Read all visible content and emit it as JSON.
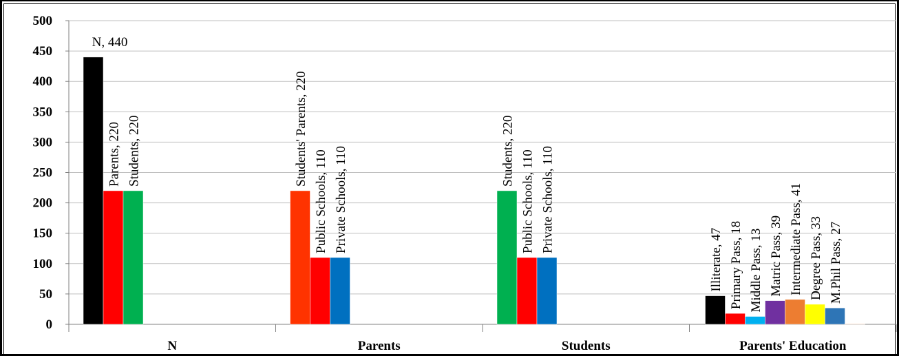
{
  "chart_data": {
    "type": "bar",
    "ylim": [
      0,
      500
    ],
    "yticks": [
      0,
      50,
      100,
      150,
      200,
      250,
      300,
      350,
      400,
      450,
      500
    ],
    "grid": true,
    "legend": "none",
    "categories": [
      "N",
      "Parents",
      "Students",
      "Parents' Education"
    ],
    "groups": [
      {
        "category": "N",
        "bars": [
          {
            "name": "N",
            "value": 440,
            "label": "N, 440",
            "color": "#000000",
            "label_orientation": "horizontal"
          },
          {
            "name": "Parents",
            "value": 220,
            "label": "Parents, 220",
            "color": "#ff0000",
            "label_orientation": "vertical"
          },
          {
            "name": "Students",
            "value": 220,
            "label": "Students, 220",
            "color": "#00b050",
            "label_orientation": "vertical"
          }
        ]
      },
      {
        "category": "Parents",
        "bars": [
          {
            "name": "Students' Parents",
            "value": 220,
            "label": "Students' Parents, 220",
            "color": "#ff3300",
            "label_orientation": "vertical"
          },
          {
            "name": "Public Schools",
            "value": 110,
            "label": "Public Schools, 110",
            "color": "#ff0000",
            "label_orientation": "vertical"
          },
          {
            "name": "Private Schools",
            "value": 110,
            "label": "Private Schools, 110",
            "color": "#0070c0",
            "label_orientation": "vertical"
          }
        ]
      },
      {
        "category": "Students",
        "bars": [
          {
            "name": "Students",
            "value": 220,
            "label": "Students, 220",
            "color": "#00b050",
            "label_orientation": "vertical"
          },
          {
            "name": "Public Schools",
            "value": 110,
            "label": "Public Schools, 110",
            "color": "#ff0000",
            "label_orientation": "vertical"
          },
          {
            "name": "Private Schools",
            "value": 110,
            "label": "Private Schools, 110",
            "color": "#0070c0",
            "label_orientation": "vertical"
          }
        ]
      },
      {
        "category": "Parents' Education",
        "bars": [
          {
            "name": "Illiterate",
            "value": 47,
            "label": "Illiterate, 47",
            "color": "#000000",
            "label_orientation": "vertical"
          },
          {
            "name": "Primary Pass",
            "value": 18,
            "label": "Primary Pass, 18",
            "color": "#ff0000",
            "label_orientation": "vertical"
          },
          {
            "name": "Middle Pass",
            "value": 13,
            "label": "Middle Pass, 13",
            "color": "#00b0f0",
            "label_orientation": "vertical"
          },
          {
            "name": "Matric Pass",
            "value": 39,
            "label": "Matric Pass, 39",
            "color": "#7030a0",
            "label_orientation": "vertical"
          },
          {
            "name": "Intermediate Pass",
            "value": 41,
            "label": "Intermediate Pass, 41",
            "color": "#ed7d31",
            "label_orientation": "vertical"
          },
          {
            "name": "Degree  Pass",
            "value": 33,
            "label": "Degree  Pass, 33",
            "color": "#ffff00",
            "label_orientation": "vertical"
          },
          {
            "name": "M.Phil Pass",
            "value": 27,
            "label": "M.Phil Pass, 27",
            "color": "#2e75b6",
            "label_orientation": "vertical"
          },
          {
            "name": "",
            "value": 1,
            "label": "",
            "color": "#f4b183",
            "label_orientation": "none"
          }
        ]
      }
    ]
  }
}
